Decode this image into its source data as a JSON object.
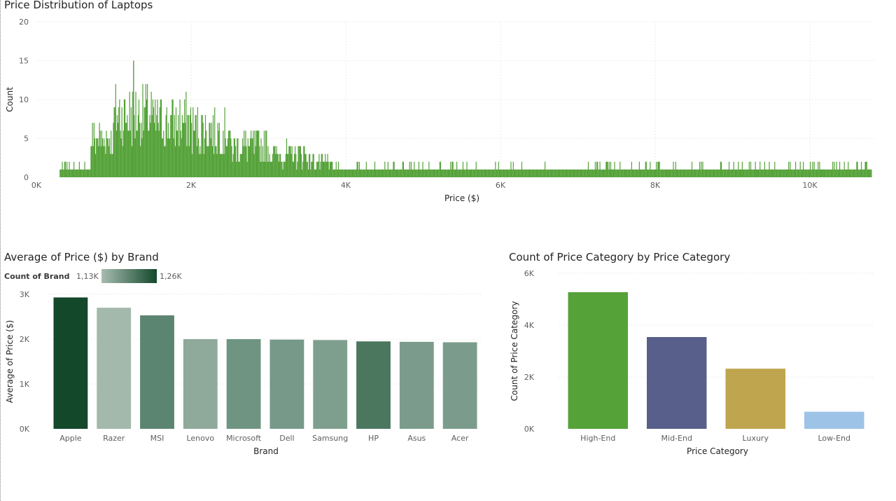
{
  "chart_data": [
    {
      "type": "bar",
      "title": "Price Distribution of Laptops",
      "xlabel": "Price ($)",
      "ylabel": "Count",
      "xlim": [
        0,
        10900
      ],
      "ylim": [
        0,
        20
      ],
      "x_ticks": [
        "0K",
        "2K",
        "4K",
        "6K",
        "8K",
        "10K"
      ],
      "y_ticks": [
        "0",
        "5",
        "10",
        "15",
        "20"
      ],
      "grid": true,
      "color": "#55a239",
      "peak_count": 15,
      "peak_price": 1250,
      "segments": [
        {
          "from": 300,
          "to": 700,
          "avg": 1
        },
        {
          "from": 700,
          "to": 1000,
          "avg": 5
        },
        {
          "from": 1000,
          "to": 1500,
          "avg": 8
        },
        {
          "from": 1500,
          "to": 2000,
          "avg": 7
        },
        {
          "from": 2000,
          "to": 2500,
          "avg": 6
        },
        {
          "from": 2500,
          "to": 3000,
          "avg": 4
        },
        {
          "from": 3000,
          "to": 3500,
          "avg": 3
        },
        {
          "from": 3500,
          "to": 3800,
          "avg": 2
        },
        {
          "from": 3800,
          "to": 5500,
          "avg": 1
        },
        {
          "from": 5500,
          "to": 7300,
          "avg": 1
        },
        {
          "from": 7300,
          "to": 10800,
          "avg": 1
        }
      ],
      "sparse_x": [
        7450,
        7600,
        7750,
        8000,
        8150,
        8500,
        8700,
        8900,
        9100,
        9300,
        9500,
        9700,
        9900,
        10150,
        10500,
        10700
      ]
    },
    {
      "type": "bar",
      "title": "Average of Price ($) by Brand",
      "xlabel": "Brand",
      "ylabel": "Average of Price ($)",
      "ylim": [
        0,
        3000
      ],
      "y_ticks": [
        "0K",
        "1K",
        "2K",
        "3K"
      ],
      "categories": [
        "Apple",
        "Razer",
        "MSI",
        "Lenovo",
        "Microsoft",
        "Dell",
        "Samsung",
        "HP",
        "Asus",
        "Acer"
      ],
      "values": [
        2930,
        2700,
        2530,
        2000,
        2000,
        1990,
        1980,
        1950,
        1940,
        1930
      ],
      "colors": [
        "#13482b",
        "#a2b9ab",
        "#5c8571",
        "#8fa99a",
        "#6f9582",
        "#76998a",
        "#7f9f8e",
        "#4a775e",
        "#7b9c8c",
        "#7b9c8c"
      ],
      "legend": {
        "title": "Count of Brand",
        "min_label": "1,13K",
        "max_label": "1,26K",
        "min_color": "#a8bcb0",
        "max_color": "#13482b"
      },
      "grid": true
    },
    {
      "type": "bar",
      "title": "Count of Price Category by Price Category",
      "xlabel": "Price Category",
      "ylabel": "Count of Price Category",
      "ylim": [
        0,
        6000
      ],
      "y_ticks": [
        "0K",
        "2K",
        "4K",
        "6K"
      ],
      "categories": [
        "High-End",
        "Mid-End",
        "Luxury",
        "Low-End"
      ],
      "values": [
        5270,
        3540,
        2320,
        660
      ],
      "colors": [
        "#55a239",
        "#585f8a",
        "#bfa54e",
        "#9dc3e6"
      ],
      "grid": true
    }
  ]
}
